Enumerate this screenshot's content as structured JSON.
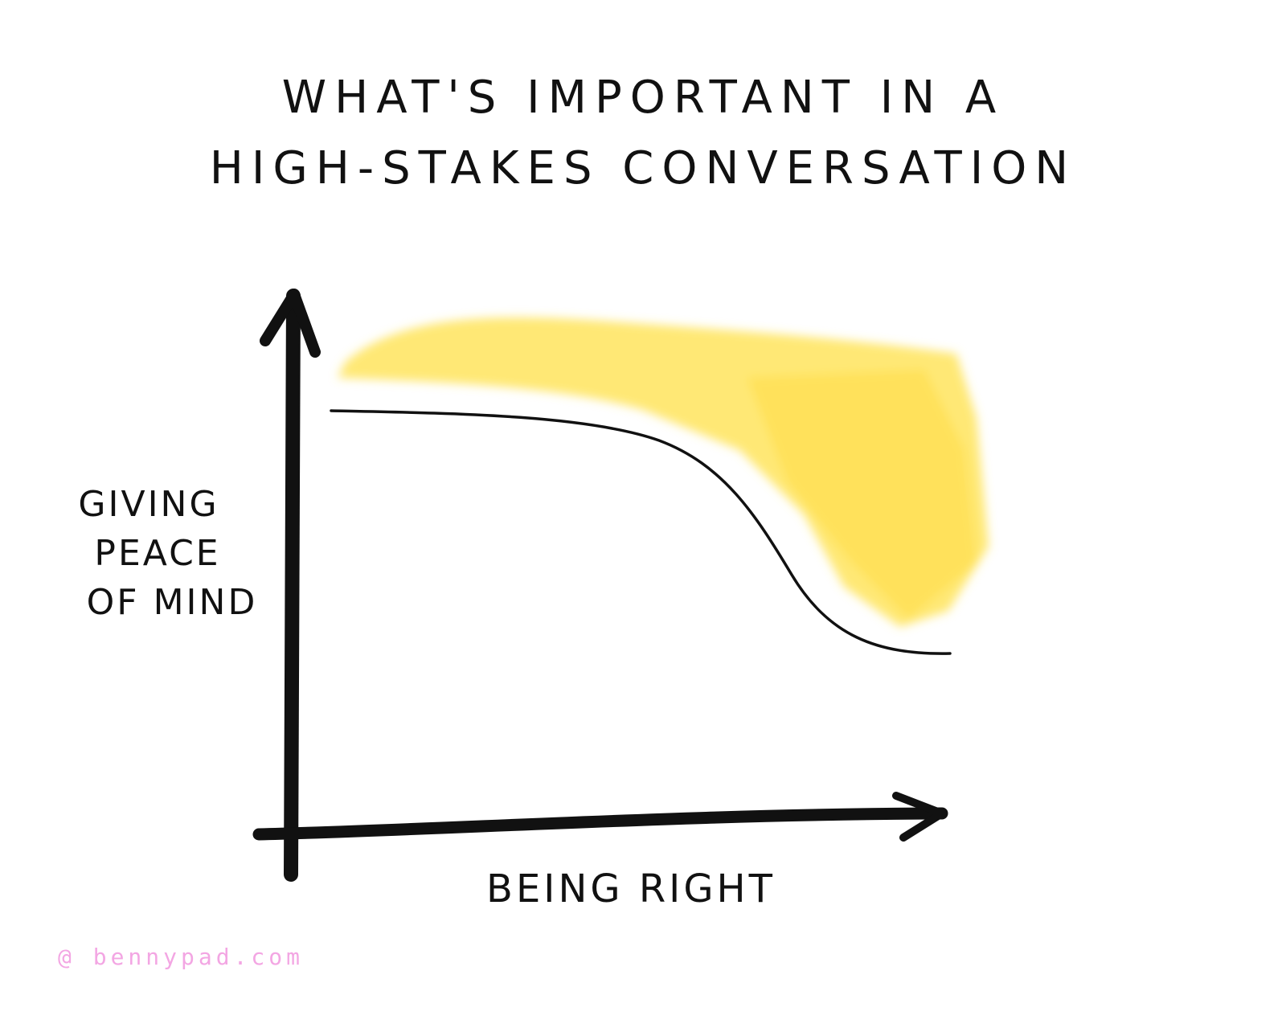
{
  "title": {
    "line1": "WHAT'S IMPORTANT IN A",
    "line2": "HIGH-STAKES CONVERSATION"
  },
  "axes": {
    "y_label_lines": [
      "GIVING",
      "PEACE",
      "OF MIND"
    ],
    "x_label": "BEING RIGHT"
  },
  "credit": "@ bennypad.com",
  "colors": {
    "ink": "#111111",
    "highlight": "#FFE14D",
    "credit": "#F3A6E3"
  }
}
